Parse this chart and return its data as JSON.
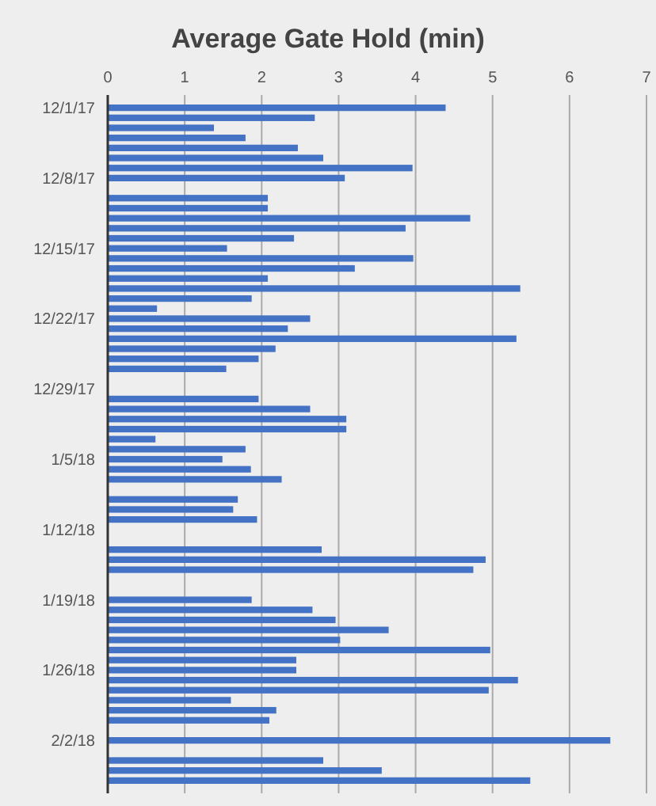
{
  "chart_data": {
    "type": "bar",
    "orientation": "horizontal",
    "title": "Average Gate Hold (min)",
    "categories": [
      "12/1/17",
      null,
      null,
      null,
      null,
      null,
      null,
      "12/8/17",
      null,
      null,
      null,
      null,
      null,
      null,
      "12/15/17",
      null,
      null,
      null,
      null,
      null,
      null,
      "12/22/17",
      null,
      null,
      null,
      null,
      null,
      null,
      "12/29/17",
      null,
      null,
      null,
      null,
      null,
      null,
      "1/5/18",
      null,
      null,
      null,
      null,
      null,
      null,
      "1/12/18",
      null,
      null,
      null,
      null,
      null,
      null,
      "1/19/18",
      null,
      null,
      null,
      null,
      null,
      null,
      "1/26/18",
      null,
      null,
      null,
      null,
      null,
      null,
      "2/2/18",
      null,
      null,
      null,
      null
    ],
    "values": [
      4.39,
      2.69,
      1.38,
      1.79,
      2.47,
      2.8,
      3.96,
      3.08,
      null,
      2.08,
      2.08,
      4.71,
      3.87,
      2.42,
      1.55,
      3.97,
      3.21,
      2.08,
      5.36,
      1.87,
      0.64,
      2.63,
      2.34,
      5.31,
      2.18,
      1.96,
      1.54,
      null,
      null,
      1.96,
      2.63,
      3.1,
      3.1,
      0.62,
      1.79,
      1.49,
      1.86,
      2.26,
      null,
      1.69,
      1.63,
      1.94,
      null,
      null,
      2.78,
      4.91,
      4.75,
      null,
      null,
      1.87,
      2.66,
      2.96,
      3.65,
      3.02,
      4.97,
      2.45,
      2.45,
      5.33,
      4.95,
      1.6,
      2.19,
      2.1,
      null,
      6.53,
      null,
      2.8,
      3.56,
      5.49
    ],
    "color": "#4472c4",
    "xlim": [
      0,
      7
    ],
    "xticks": [
      0,
      1,
      2,
      3,
      4,
      5,
      6,
      7
    ],
    "grid": "x"
  }
}
